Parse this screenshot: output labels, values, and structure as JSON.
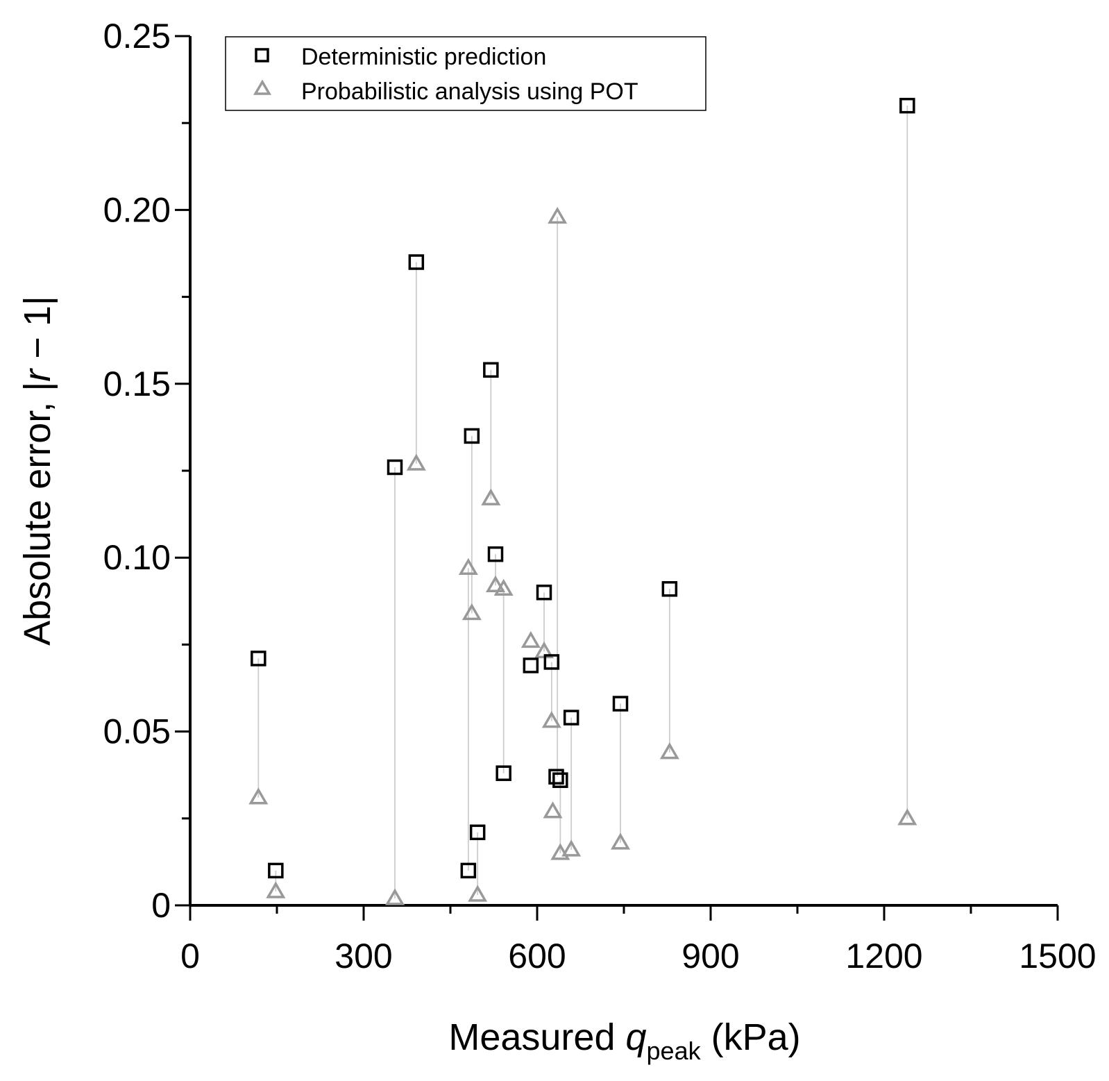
{
  "chart_data": {
    "type": "scatter",
    "title": "",
    "xlabel": {
      "prefix": "Measured ",
      "var": "q",
      "sub": "peak",
      "suffix": " (kPa)"
    },
    "ylabel": {
      "prefix": "Absolute error, |",
      "var": "r",
      "suffix": " − 1|"
    },
    "xlim": [
      0,
      1500
    ],
    "ylim": [
      0,
      0.25
    ],
    "x_ticks": [
      "0",
      "300",
      "600",
      "900",
      "1200",
      "1500"
    ],
    "y_ticks": [
      "0",
      "0.05",
      "0.10",
      "0.15",
      "0.20",
      "0.25"
    ],
    "legend_position": "top-left",
    "grid": false,
    "series": [
      {
        "name": "Deterministic prediction",
        "marker": "square",
        "color": "#000000",
        "points": [
          {
            "x": 118,
            "y": 0.071
          },
          {
            "x": 148,
            "y": 0.01
          },
          {
            "x": 354,
            "y": 0.126
          },
          {
            "x": 391,
            "y": 0.185
          },
          {
            "x": 481,
            "y": 0.01
          },
          {
            "x": 487,
            "y": 0.135
          },
          {
            "x": 497,
            "y": 0.021
          },
          {
            "x": 520,
            "y": 0.154
          },
          {
            "x": 528,
            "y": 0.101
          },
          {
            "x": 542,
            "y": 0.038
          },
          {
            "x": 589,
            "y": 0.069
          },
          {
            "x": 612,
            "y": 0.09
          },
          {
            "x": 625,
            "y": 0.07
          },
          {
            "x": 633,
            "y": 0.037
          },
          {
            "x": 640,
            "y": 0.036
          },
          {
            "x": 659,
            "y": 0.054
          },
          {
            "x": 744,
            "y": 0.058
          },
          {
            "x": 829,
            "y": 0.091
          },
          {
            "x": 1240,
            "y": 0.23
          }
        ]
      },
      {
        "name": "Probabilistic analysis using POT",
        "marker": "triangle",
        "color": "#999999",
        "points": [
          {
            "x": 118,
            "y": 0.031
          },
          {
            "x": 148,
            "y": 0.004
          },
          {
            "x": 354,
            "y": 0.002
          },
          {
            "x": 391,
            "y": 0.127
          },
          {
            "x": 481,
            "y": 0.097
          },
          {
            "x": 487,
            "y": 0.084
          },
          {
            "x": 497,
            "y": 0.003
          },
          {
            "x": 520,
            "y": 0.117
          },
          {
            "x": 528,
            "y": 0.092
          },
          {
            "x": 542,
            "y": 0.091
          },
          {
            "x": 589,
            "y": 0.076
          },
          {
            "x": 612,
            "y": 0.073
          },
          {
            "x": 625,
            "y": 0.053
          },
          {
            "x": 627,
            "y": 0.027
          },
          {
            "x": 640,
            "y": 0.015
          },
          {
            "x": 659,
            "y": 0.016
          },
          {
            "x": 744,
            "y": 0.018
          },
          {
            "x": 829,
            "y": 0.044
          },
          {
            "x": 1240,
            "y": 0.025
          },
          {
            "x": 635,
            "y": 0.198
          }
        ]
      }
    ],
    "connectors": [
      {
        "x": 118,
        "y1": 0.071,
        "y2": 0.031
      },
      {
        "x": 148,
        "y1": 0.01,
        "y2": 0.004
      },
      {
        "x": 354,
        "y1": 0.126,
        "y2": 0.002
      },
      {
        "x": 391,
        "y1": 0.185,
        "y2": 0.127
      },
      {
        "x": 481,
        "y1": 0.01,
        "y2": 0.097
      },
      {
        "x": 487,
        "y1": 0.135,
        "y2": 0.084
      },
      {
        "x": 497,
        "y1": 0.021,
        "y2": 0.003
      },
      {
        "x": 520,
        "y1": 0.154,
        "y2": 0.117
      },
      {
        "x": 528,
        "y1": 0.101,
        "y2": 0.092
      },
      {
        "x": 542,
        "y1": 0.038,
        "y2": 0.091
      },
      {
        "x": 612,
        "y1": 0.09,
        "y2": 0.073
      },
      {
        "x": 625,
        "y1": 0.07,
        "y2": 0.053
      },
      {
        "x": 635,
        "y1": 0.198,
        "y2": 0.037
      },
      {
        "x": 640,
        "y1": 0.036,
        "y2": 0.015
      },
      {
        "x": 659,
        "y1": 0.054,
        "y2": 0.016
      },
      {
        "x": 744,
        "y1": 0.058,
        "y2": 0.018
      },
      {
        "x": 829,
        "y1": 0.091,
        "y2": 0.044
      },
      {
        "x": 1240,
        "y1": 0.23,
        "y2": 0.025
      }
    ]
  }
}
